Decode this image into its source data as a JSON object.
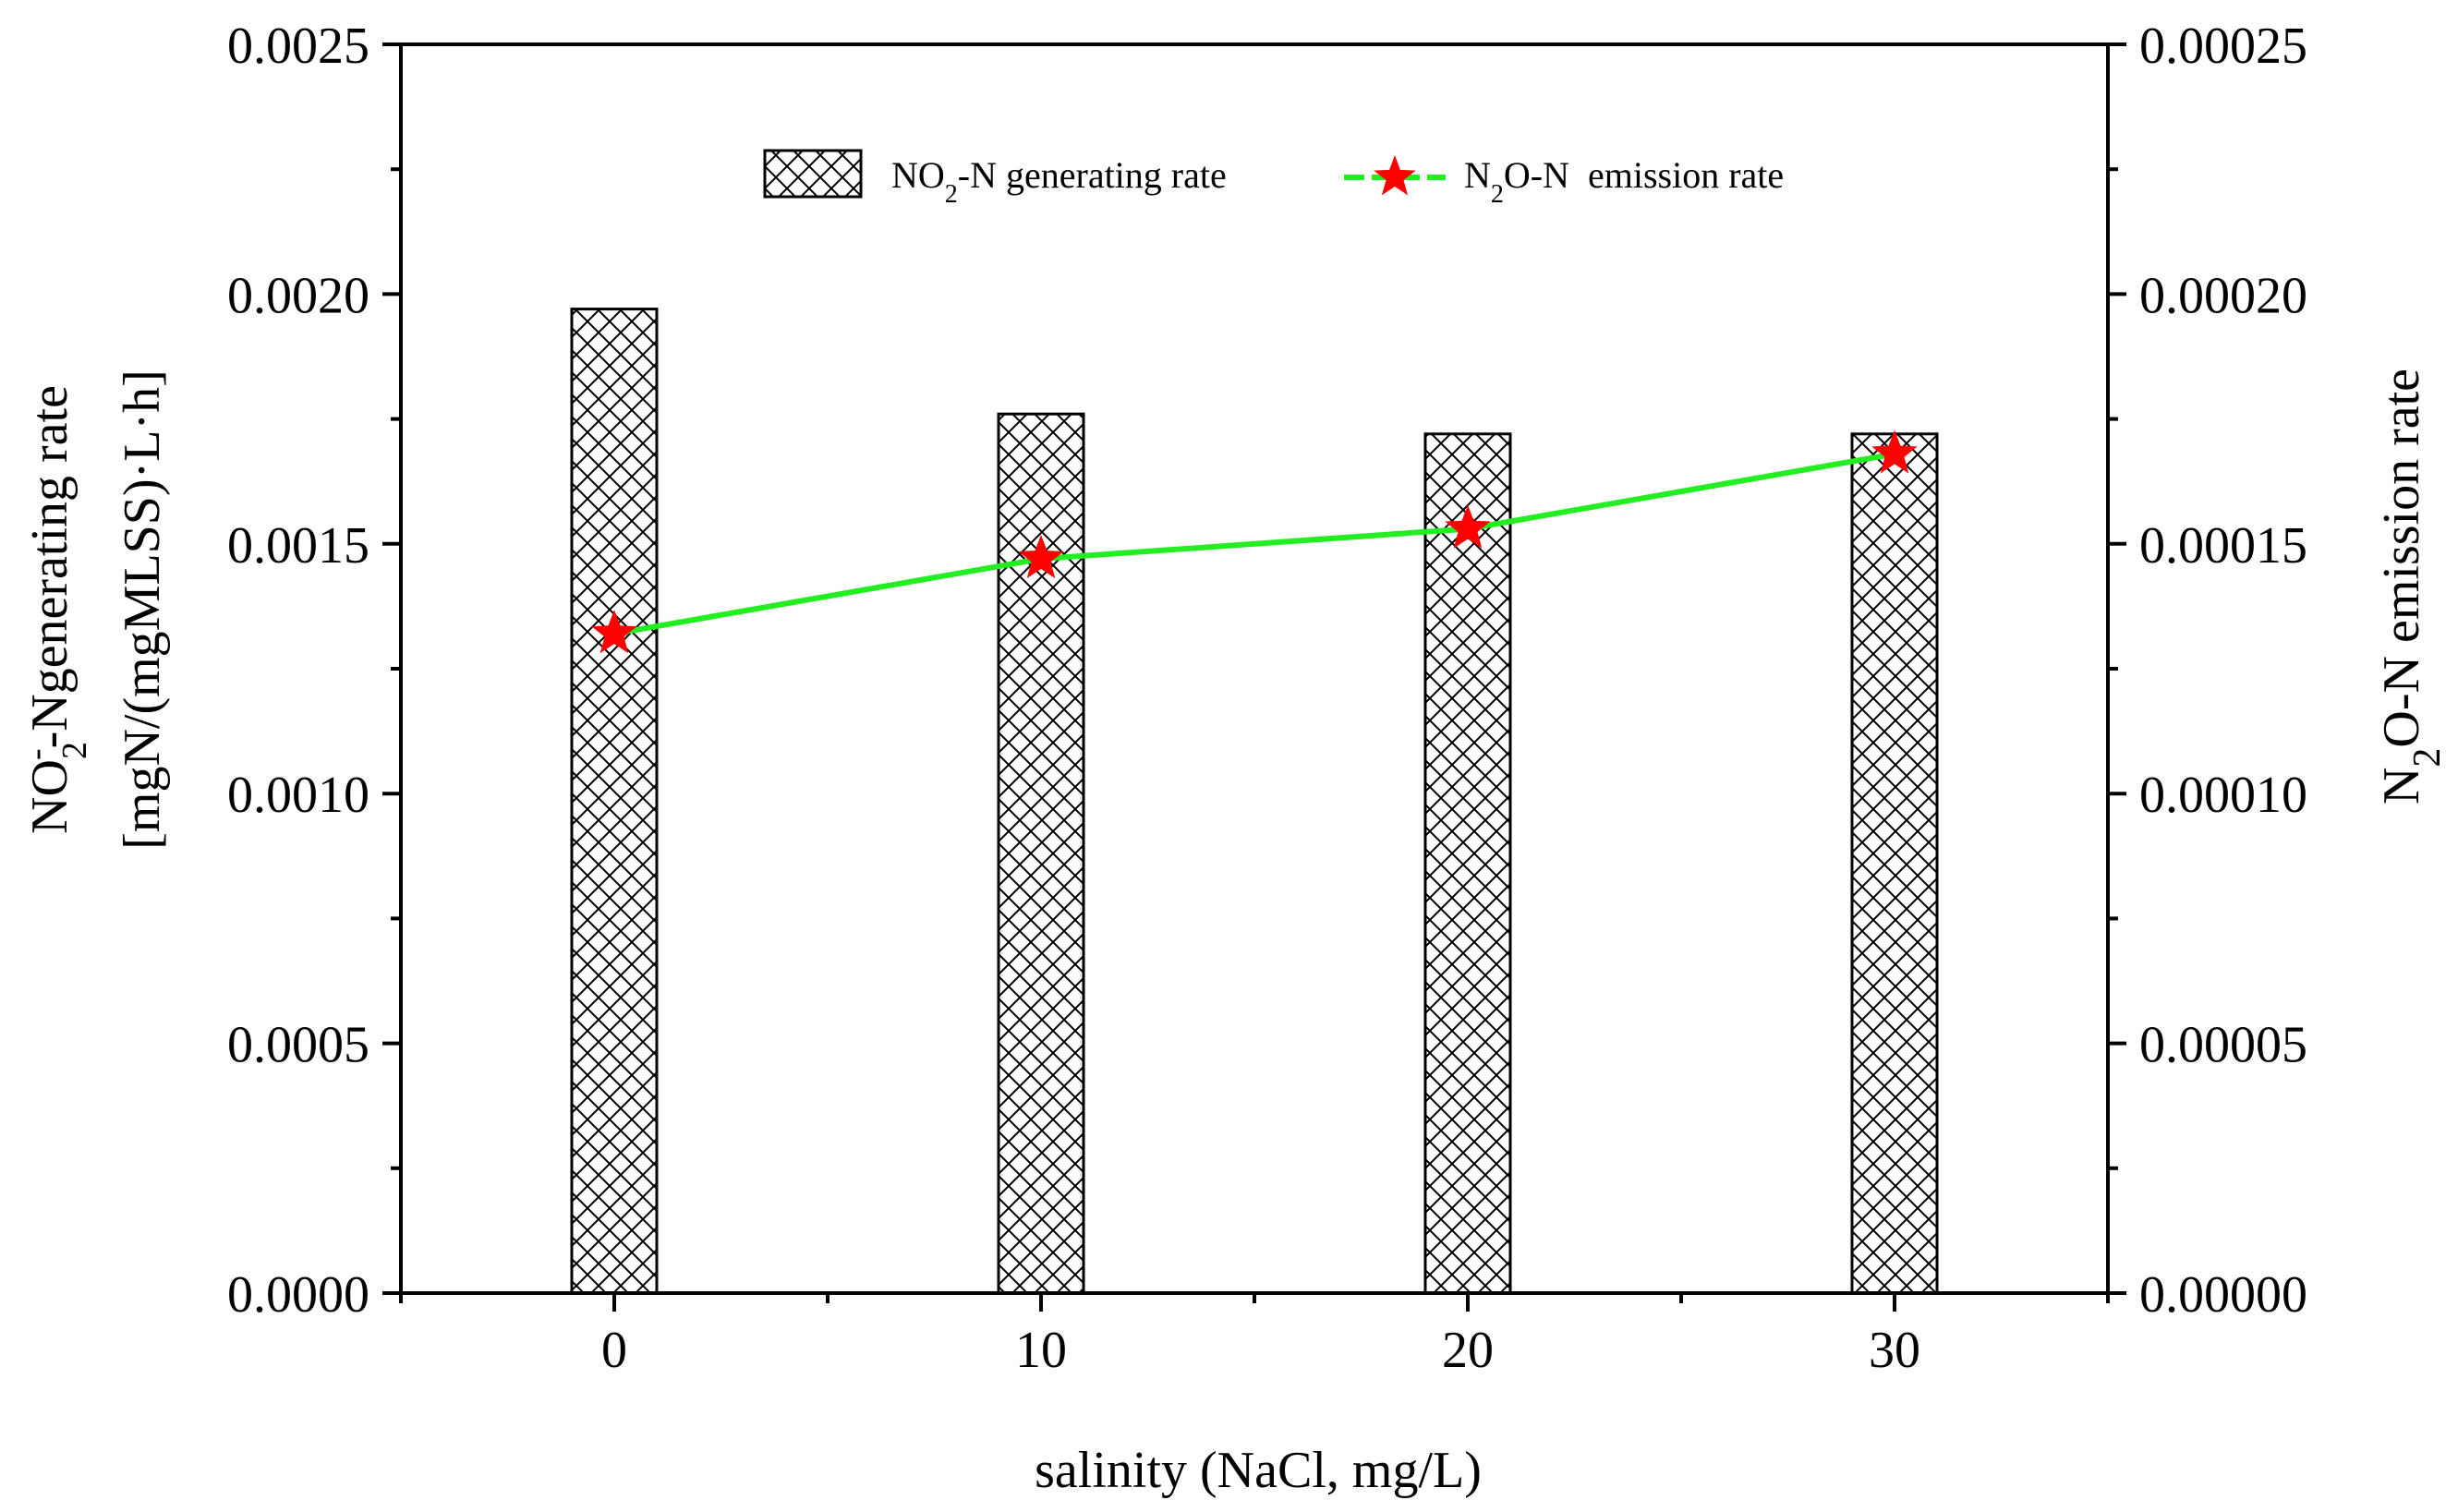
{
  "chart_data": {
    "type": "bar",
    "categories": [
      "0",
      "10",
      "20",
      "30"
    ],
    "x": [
      0,
      10,
      20,
      30
    ],
    "xlim": [
      -5,
      35
    ],
    "xticks": [
      0,
      10,
      20,
      30
    ],
    "xlabel": "salinity (NaCl, mg/L)",
    "ylabel_left": {
      "line1_main": "NO",
      "line1_sub": "2",
      "line1_sup": "-",
      "line1_rest": "-Ngenerating rate",
      "line2": "[mgN/(mgMLSS)·L·h]"
    },
    "ylabel_right": {
      "prefix": "N",
      "sub": "2",
      "rest": "O-N emission rate"
    },
    "ylim_left": [
      0,
      0.0025
    ],
    "yticks_left": [
      "0.0000",
      "0.0005",
      "0.0010",
      "0.0015",
      "0.0020",
      "0.0025"
    ],
    "ylim_right": [
      0,
      0.00025
    ],
    "yticks_right": [
      "0.00000",
      "0.00005",
      "0.00010",
      "0.00015",
      "0.00020",
      "0.00025"
    ],
    "series": [
      {
        "name": "NO2-N generating rate",
        "kind": "bar",
        "axis": "left",
        "pattern": "crosshatch",
        "values": [
          0.00197,
          0.00176,
          0.00172,
          0.00172
        ]
      },
      {
        "name": "N2O-N emission rate",
        "kind": "line",
        "axis": "right",
        "line_color": "#22ee22",
        "marker": "star",
        "marker_color": "#ff0000",
        "values": [
          0.000132,
          0.000147,
          0.000153,
          0.000168
        ]
      }
    ],
    "legend": {
      "position": "top-center",
      "bar_label": {
        "main": "NO",
        "sub": "2",
        "rest": "-N generating rate"
      },
      "line_label": {
        "main": "N",
        "sub": "2",
        "rest": "O-N  emission rate"
      }
    }
  }
}
